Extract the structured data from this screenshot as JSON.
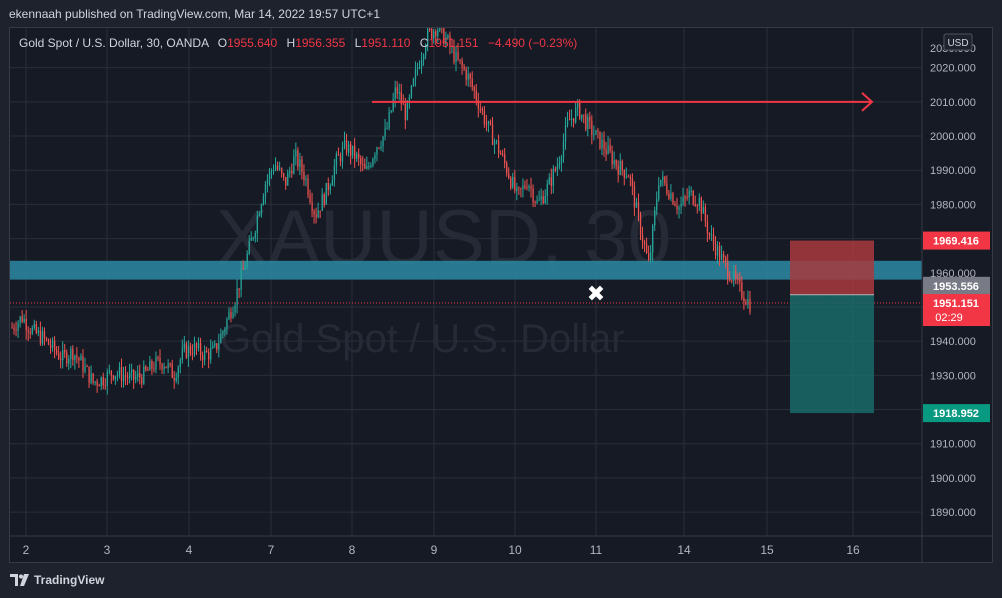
{
  "header": {
    "publish_line": "ekennaah published on TradingView.com, Mar 14, 2022 19:57 UTC+1"
  },
  "legend": {
    "symbol": "Gold Spot / U.S. Dollar, 30, OANDA",
    "open_label": "O",
    "open": "1955.640",
    "high_label": "H",
    "high": "1956.355",
    "low_label": "L",
    "low": "1951.110",
    "close_label": "C",
    "close": "1951.151",
    "change": "−4.490 (−0.23%)"
  },
  "watermark": {
    "ticker": "XAUUSD, 30",
    "name": "Gold Spot / U.S. Dollar"
  },
  "footer": {
    "brand": "TradingView"
  },
  "chart_data": {
    "type": "candlestick",
    "currency_label": "USD",
    "y_ticks": [
      "2020.000",
      "2010.000",
      "2000.000",
      "1990.000",
      "1980.000",
      "1970.000",
      "1960.000",
      "1950.000",
      "1940.000",
      "1930.000",
      "1920.000",
      "1910.000",
      "1900.000",
      "1890.000"
    ],
    "x_ticks": [
      "2",
      "3",
      "4",
      "7",
      "8",
      "9",
      "10",
      "11",
      "14",
      "15",
      "16"
    ],
    "ylim": [
      1883,
      2032
    ],
    "close_path": [
      [
        0,
        1944
      ],
      [
        1,
        1947
      ],
      [
        2,
        1943
      ],
      [
        3,
        1941
      ],
      [
        4,
        1938
      ],
      [
        5,
        1935
      ],
      [
        6,
        1937
      ],
      [
        7,
        1933
      ],
      [
        8,
        1928
      ],
      [
        9,
        1929
      ],
      [
        10,
        1931
      ],
      [
        11,
        1930
      ],
      [
        12,
        1929
      ],
      [
        13,
        1930
      ],
      [
        14,
        1933
      ],
      [
        15,
        1934
      ],
      [
        16,
        1930
      ],
      [
        17,
        1937
      ],
      [
        18,
        1938
      ],
      [
        19,
        1936
      ],
      [
        20,
        1937
      ],
      [
        21,
        1944
      ],
      [
        22,
        1952
      ],
      [
        23,
        1962
      ],
      [
        24,
        1973
      ],
      [
        25,
        1986
      ],
      [
        26,
        1992
      ],
      [
        27,
        1986
      ],
      [
        28,
        1994
      ],
      [
        29,
        1988
      ],
      [
        30,
        1977
      ],
      [
        31,
        1983
      ],
      [
        32,
        1992
      ],
      [
        33,
        1997
      ],
      [
        34,
        1994
      ],
      [
        35,
        1989
      ],
      [
        36,
        1997
      ],
      [
        37,
        2001
      ],
      [
        38,
        2014
      ],
      [
        39,
        2006
      ],
      [
        40,
        2019
      ],
      [
        41,
        2029
      ],
      [
        42,
        2032
      ],
      [
        43,
        2028
      ],
      [
        44,
        2022
      ],
      [
        45,
        2018
      ],
      [
        46,
        2011
      ],
      [
        47,
        2003
      ],
      [
        48,
        1997
      ],
      [
        49,
        1990
      ],
      [
        50,
        1982
      ],
      [
        51,
        1987
      ],
      [
        52,
        1980
      ],
      [
        53,
        1985
      ],
      [
        54,
        1992
      ],
      [
        55,
        2004
      ],
      [
        56,
        2008
      ],
      [
        57,
        2003
      ],
      [
        58,
        1999
      ],
      [
        59,
        1995
      ],
      [
        60,
        1991
      ],
      [
        61,
        1989
      ],
      [
        62,
        1975
      ],
      [
        63,
        1962
      ],
      [
        64,
        1988
      ],
      [
        65,
        1984
      ],
      [
        66,
        1979
      ],
      [
        67,
        1983
      ],
      [
        68,
        1981
      ],
      [
        69,
        1971
      ],
      [
        70,
        1965
      ],
      [
        71,
        1960
      ],
      [
        72,
        1955
      ],
      [
        73,
        1951
      ]
    ],
    "current_price": "1951.151",
    "countdown": "02:29",
    "resistance_arrow_price": 2010,
    "support_zone": {
      "from": 1958.0,
      "to": 1963.5,
      "label": "1953.556"
    },
    "position": {
      "type": "short",
      "entry": "1953.556",
      "stop": "1969.416",
      "target": "1918.952"
    },
    "annotations": [
      "✖"
    ],
    "colors": {
      "up": "#26a69a",
      "down": "#ef5350",
      "background": "#161a25",
      "grid": "#2a2e39",
      "zone": "#2a8aa3",
      "arrow": "#f23645",
      "stop_zone": "#a83a3e",
      "target_zone": "#1a6b69",
      "last_price": "#f23645",
      "label_grey": "#787b86",
      "target_label": "#089981"
    }
  }
}
